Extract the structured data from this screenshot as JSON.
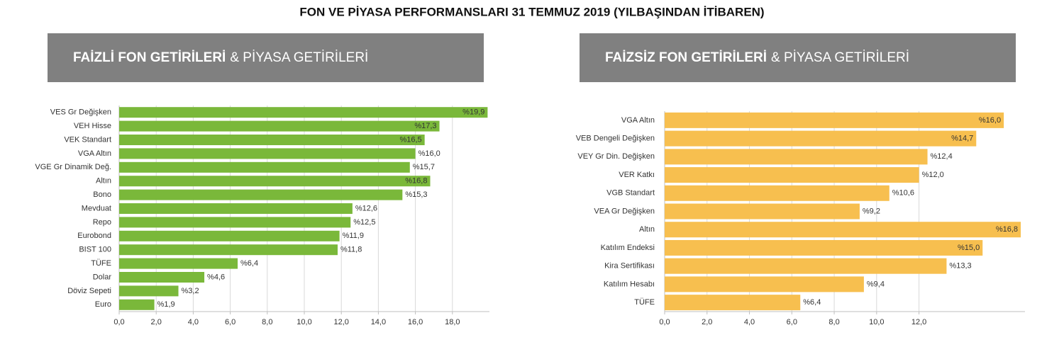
{
  "title": "FON VE PİYASA PERFORMANSLARI 31 TEMMUZ 2019 (YILBAŞINDAN İTİBAREN)",
  "chart_data": [
    {
      "type": "barh",
      "title": "FAİZLİ FON GETİRİLERİ",
      "subtitle": "& PİYASA GETİRİLERİ",
      "color": "#7ab83a",
      "grid": true,
      "categories": [
        "VES  Gr Değişken",
        "VEH Hisse",
        "VEK Standart",
        "VGA Altın",
        "VGE Gr Dinamik Değ.",
        "Altın",
        "Bono",
        "Mevduat",
        "Repo",
        "Eurobond",
        "BIST 100",
        "TÜFE",
        "Dolar",
        "Döviz Sepeti",
        "Euro"
      ],
      "values": [
        19.9,
        17.3,
        16.5,
        16.0,
        15.7,
        16.8,
        15.3,
        12.6,
        12.5,
        11.9,
        11.8,
        6.4,
        4.6,
        3.2,
        1.9
      ],
      "value_labels": [
        "%19,9",
        "%17,3",
        "%16,5",
        "%16,0",
        "%15,7",
        "%16,8",
        "%15,3",
        "%12,6",
        "%12,5",
        "%11,9",
        "%11,8",
        "%6,4",
        "%4,6",
        "%3,2",
        "%1,9"
      ],
      "xlim": [
        0,
        20
      ],
      "xticks": [
        {
          "value": 0,
          "label": "0,0"
        },
        {
          "value": 2,
          "label": "2,0"
        },
        {
          "value": 4,
          "label": "4,0"
        },
        {
          "value": 6,
          "label": "6,0"
        },
        {
          "value": 8,
          "label": "8,0"
        },
        {
          "value": 10,
          "label": "10,0"
        },
        {
          "value": 12,
          "label": "12,0"
        },
        {
          "value": 14,
          "label": "14,0"
        },
        {
          "value": 16,
          "label": "16,0"
        },
        {
          "value": 18,
          "label": "18,0"
        }
      ]
    },
    {
      "type": "barh",
      "title": "FAİZSİZ FON GETİRİLERİ",
      "subtitle": "& PİYASA GETİRİLERİ",
      "color": "#f7bf4f",
      "grid": true,
      "categories": [
        "VGA  Altın",
        "VEB  Dengeli Değişken",
        "VEY  Gr Din. Değişken",
        "VER  Katkı",
        "VGB  Standart",
        "VEA Gr Değişken",
        "Altın",
        "Katılım Endeksi",
        "Kira Sertifikası",
        "Katılım Hesabı",
        "TÜFE"
      ],
      "values": [
        16.0,
        14.7,
        12.4,
        12.0,
        10.6,
        9.2,
        16.8,
        15.0,
        13.3,
        9.4,
        6.4
      ],
      "value_labels": [
        "%16,0",
        "%14,7",
        "%12,4",
        "%12,0",
        "%10,6",
        "%9,2",
        "%16,8",
        "%15,0",
        "%13,3",
        "%9,4",
        "%6,4"
      ],
      "xlim": [
        0,
        17
      ],
      "xticks": [
        {
          "value": 0,
          "label": "0,0"
        },
        {
          "value": 2,
          "label": "2,0"
        },
        {
          "value": 4,
          "label": "4,0"
        },
        {
          "value": 6,
          "label": "6,0"
        },
        {
          "value": 8,
          "label": "8,0"
        },
        {
          "value": 10,
          "label": "10,0"
        },
        {
          "value": 12,
          "label": "12,0"
        }
      ]
    }
  ]
}
